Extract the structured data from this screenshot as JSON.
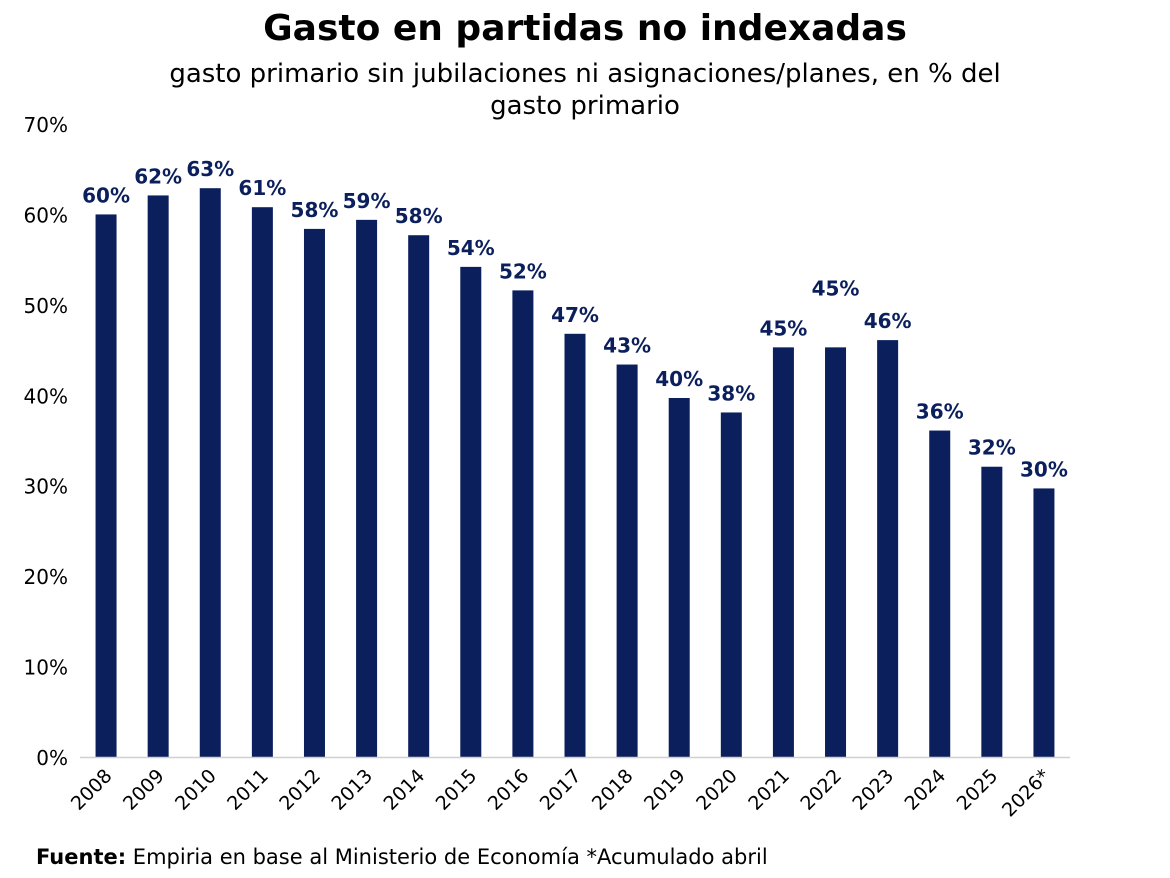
{
  "chart_data": {
    "type": "bar",
    "title": "Gasto en partidas no indexadas",
    "subtitle": "gasto primario sin jubilaciones ni asignaciones/planes, en % del gasto primario",
    "categories": [
      "2008",
      "2009",
      "2010",
      "2011",
      "2012",
      "2013",
      "2014",
      "2015",
      "2016",
      "2017",
      "2018",
      "2019",
      "2020",
      "2021",
      "2022",
      "2023",
      "2024",
      "2025",
      "2026*"
    ],
    "values": [
      60.0,
      62.1,
      62.9,
      60.8,
      58.4,
      59.4,
      57.7,
      54.2,
      51.6,
      46.8,
      43.4,
      39.7,
      38.1,
      45.3,
      45.3,
      46.1,
      36.1,
      32.1,
      29.7
    ],
    "data_labels": [
      "60%",
      "62%",
      "63%",
      "61%",
      "58%",
      "59%",
      "58%",
      "54%",
      "52%",
      "47%",
      "43%",
      "40%",
      "38%",
      "45%",
      "45%",
      "46%",
      "36%",
      "32%",
      "30%"
    ],
    "label_offsets_pct": [
      0,
      0,
      0,
      0,
      0,
      0,
      0,
      0,
      0,
      0,
      0,
      0,
      0,
      0,
      4.4,
      0,
      0,
      0,
      0
    ],
    "ylim": [
      0,
      70
    ],
    "yticks": [
      0,
      10,
      20,
      30,
      40,
      50,
      60,
      70
    ],
    "ytick_labels": [
      "0%",
      "10%",
      "20%",
      "30%",
      "40%",
      "50%",
      "60%",
      "70%"
    ],
    "xlabel": "",
    "ylabel": "",
    "grid": false,
    "legend": "none",
    "bar_color": "#0b1f5c",
    "label_color": "#0b1f5c"
  },
  "source": {
    "label": "Fuente:",
    "text": " Empiria en base al Ministerio de Economía *Acumulado abril"
  }
}
